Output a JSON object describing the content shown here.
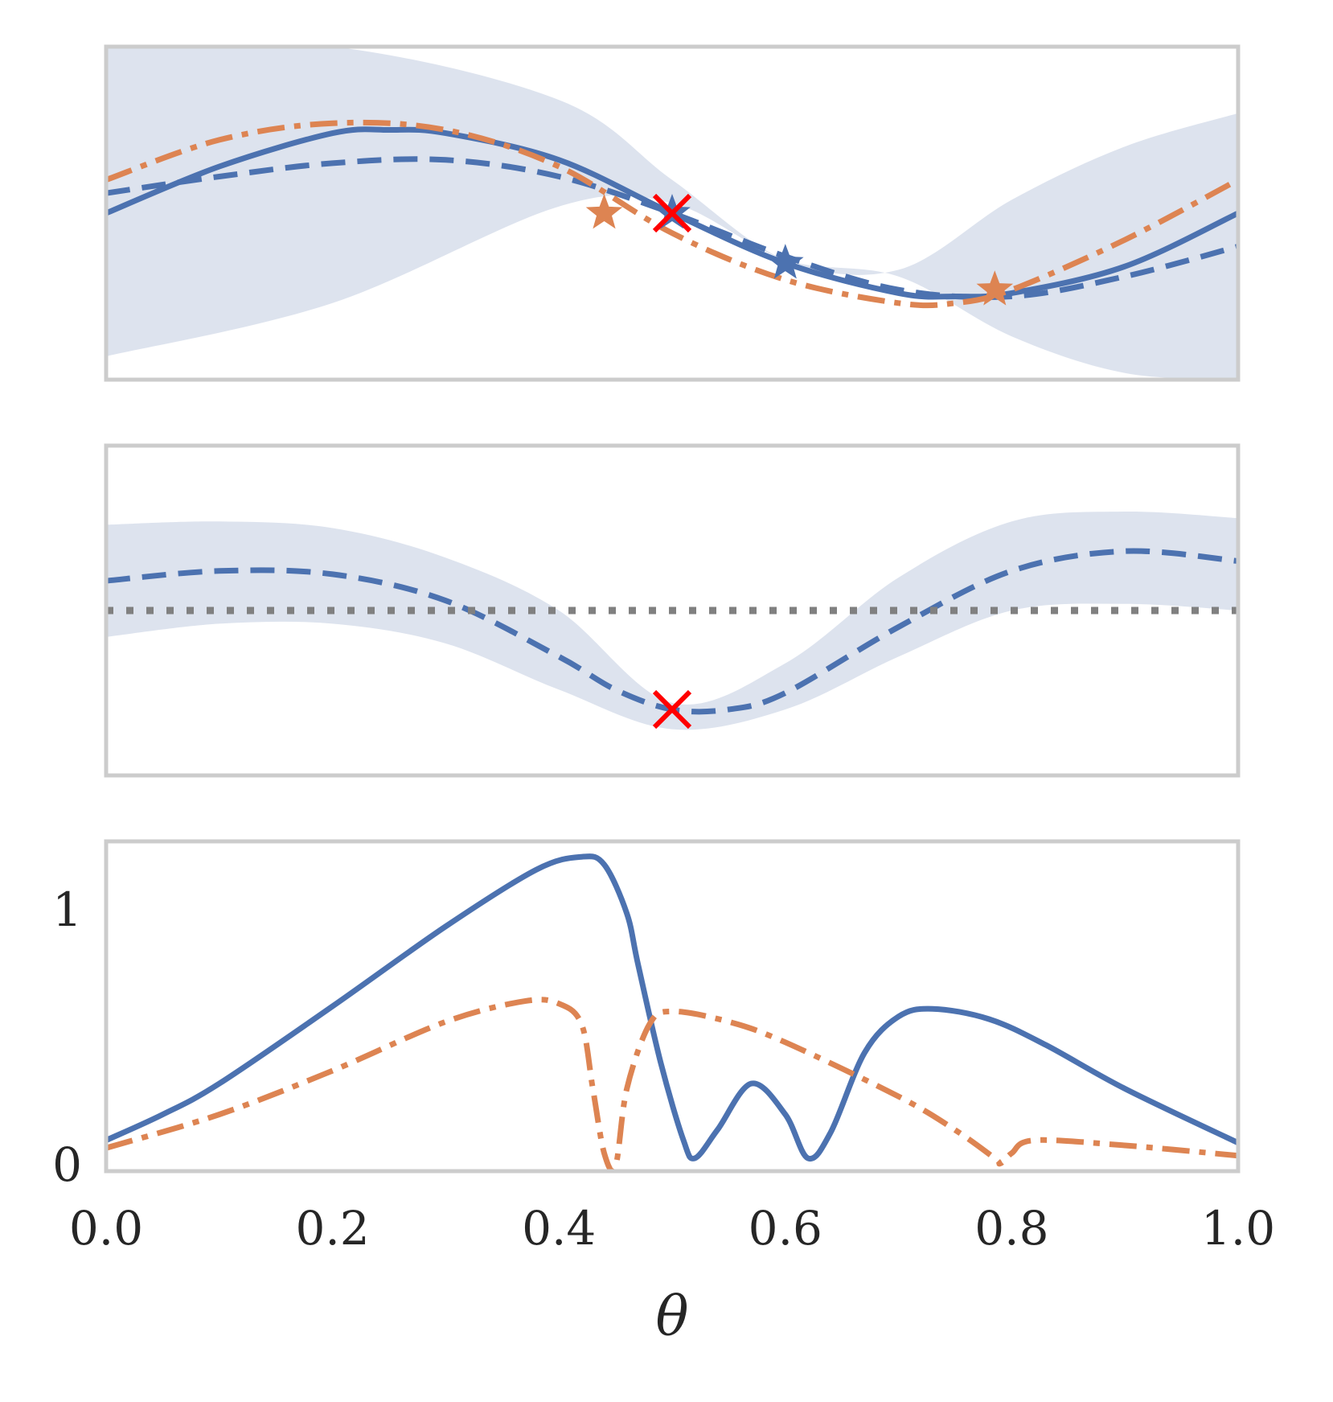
{
  "figure": {
    "xlabel": "θ",
    "x_ticks": [
      "0.0",
      "0.2",
      "0.4",
      "0.6",
      "0.8",
      "1.0"
    ]
  },
  "colors": {
    "blue": "#4c72b0",
    "orange": "#dd8452",
    "band": "#dde3ee",
    "gray": "#808080",
    "red": "#ff0000"
  },
  "chart_data": [
    {
      "type": "line",
      "panel": "top",
      "xlim": [
        0,
        1
      ],
      "ylim": [
        0,
        1
      ],
      "series": [
        {
          "name": "confidence-band",
          "style": "fill",
          "x": [
            0,
            0.2,
            0.4,
            0.5,
            0.6,
            0.7,
            0.8,
            0.9,
            1.0
          ],
          "lower": [
            0.07,
            0.23,
            0.52,
            0.53,
            0.36,
            0.31,
            0.13,
            0.02,
            0.0
          ],
          "upper": [
            1.0,
            1.0,
            0.84,
            0.6,
            0.36,
            0.33,
            0.54,
            0.7,
            0.8
          ]
        },
        {
          "name": "solid-blue",
          "style": "solid",
          "color": "blue",
          "x": [
            0,
            0.1,
            0.2,
            0.25,
            0.3,
            0.4,
            0.5,
            0.6,
            0.7,
            0.75,
            0.8,
            0.9,
            1.0
          ],
          "y": [
            0.5,
            0.64,
            0.74,
            0.75,
            0.74,
            0.66,
            0.5,
            0.35,
            0.26,
            0.25,
            0.26,
            0.34,
            0.5
          ]
        },
        {
          "name": "dashed-blue",
          "style": "dashed",
          "color": "blue",
          "x": [
            0,
            0.1,
            0.2,
            0.3,
            0.4,
            0.5,
            0.6,
            0.7,
            0.8,
            0.9,
            1.0
          ],
          "y": [
            0.56,
            0.61,
            0.65,
            0.66,
            0.61,
            0.5,
            0.37,
            0.27,
            0.25,
            0.31,
            0.4
          ]
        },
        {
          "name": "dashdot-orange",
          "style": "dashdot",
          "color": "orange",
          "x": [
            0,
            0.1,
            0.2,
            0.3,
            0.4,
            0.5,
            0.6,
            0.7,
            0.75,
            0.8,
            0.9,
            1.0
          ],
          "y": [
            0.6,
            0.72,
            0.77,
            0.75,
            0.64,
            0.44,
            0.3,
            0.23,
            0.23,
            0.27,
            0.42,
            0.6
          ]
        }
      ],
      "markers": [
        {
          "shape": "star",
          "color": "orange",
          "x": 0.44,
          "y": 0.5
        },
        {
          "shape": "star",
          "color": "blue",
          "x": 0.5,
          "y": 0.5
        },
        {
          "shape": "star",
          "color": "blue",
          "x": 0.6,
          "y": 0.35
        },
        {
          "shape": "star",
          "color": "orange",
          "x": 0.785,
          "y": 0.27
        },
        {
          "shape": "x",
          "color": "red",
          "x": 0.5,
          "y": 0.5
        }
      ]
    },
    {
      "type": "line",
      "panel": "middle",
      "xlim": [
        0,
        1
      ],
      "ylim": [
        0,
        1
      ],
      "series": [
        {
          "name": "confidence-band",
          "style": "fill",
          "x": [
            0,
            0.1,
            0.2,
            0.3,
            0.4,
            0.5,
            0.6,
            0.7,
            0.8,
            0.9,
            1.0
          ],
          "lower": [
            0.42,
            0.46,
            0.46,
            0.4,
            0.26,
            0.14,
            0.2,
            0.36,
            0.5,
            0.52,
            0.5
          ],
          "upper": [
            0.76,
            0.77,
            0.75,
            0.66,
            0.5,
            0.22,
            0.34,
            0.6,
            0.77,
            0.8,
            0.78
          ]
        },
        {
          "name": "dashed-blue",
          "style": "dashed",
          "color": "blue",
          "x": [
            0,
            0.1,
            0.2,
            0.3,
            0.4,
            0.45,
            0.5,
            0.55,
            0.6,
            0.7,
            0.8,
            0.9,
            1.0
          ],
          "y": [
            0.59,
            0.62,
            0.61,
            0.53,
            0.36,
            0.26,
            0.2,
            0.2,
            0.25,
            0.45,
            0.62,
            0.68,
            0.65
          ]
        },
        {
          "name": "threshold",
          "style": "dotted",
          "color": "gray",
          "x": [
            0,
            1
          ],
          "y": [
            0.5,
            0.5
          ]
        }
      ],
      "markers": [
        {
          "shape": "x",
          "color": "red",
          "x": 0.5,
          "y": 0.2
        }
      ]
    },
    {
      "type": "line",
      "panel": "bottom",
      "xlim": [
        0,
        1
      ],
      "ylim": [
        -0.02,
        1.26
      ],
      "yticks": [
        "0",
        "1"
      ],
      "series": [
        {
          "name": "solid-blue",
          "style": "solid",
          "color": "blue",
          "x": [
            0,
            0.05,
            0.1,
            0.2,
            0.3,
            0.38,
            0.42,
            0.44,
            0.46,
            0.47,
            0.49,
            0.51,
            0.52,
            0.54,
            0.57,
            0.6,
            0.62,
            0.64,
            0.67,
            0.7,
            0.73,
            0.78,
            0.83,
            0.9,
            1.0
          ],
          "y": [
            0.1,
            0.2,
            0.32,
            0.62,
            0.93,
            1.15,
            1.2,
            1.17,
            0.98,
            0.78,
            0.4,
            0.1,
            0.03,
            0.14,
            0.32,
            0.2,
            0.03,
            0.13,
            0.44,
            0.58,
            0.61,
            0.57,
            0.47,
            0.3,
            0.09
          ]
        },
        {
          "name": "dashdot-orange",
          "style": "dashdot",
          "color": "orange",
          "x": [
            0,
            0.1,
            0.2,
            0.3,
            0.37,
            0.4,
            0.42,
            0.43,
            0.44,
            0.45,
            0.46,
            0.48,
            0.5,
            0.55,
            0.6,
            0.7,
            0.75,
            0.785,
            0.79,
            0.8,
            0.82,
            0.9,
            1.0
          ],
          "y": [
            0.07,
            0.2,
            0.37,
            0.56,
            0.64,
            0.63,
            0.55,
            0.3,
            0.05,
            0.0,
            0.3,
            0.55,
            0.6,
            0.56,
            0.48,
            0.27,
            0.14,
            0.03,
            0.01,
            0.05,
            0.1,
            0.08,
            0.04
          ]
        }
      ]
    }
  ]
}
